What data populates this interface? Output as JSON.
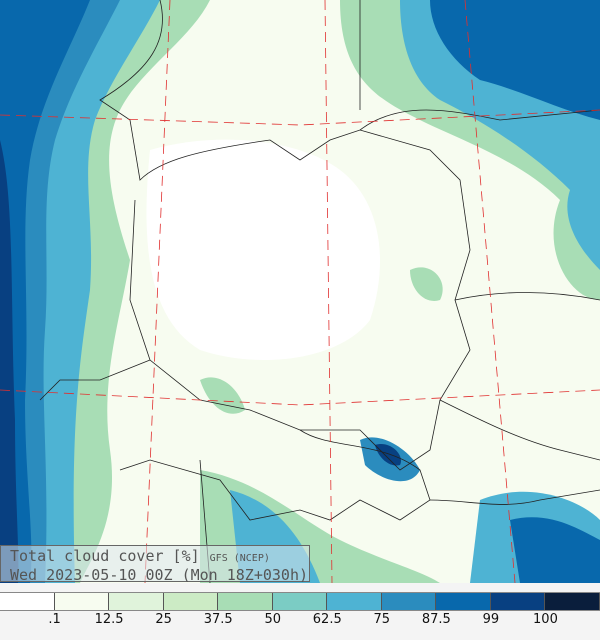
{
  "caption": {
    "title": "Total cloud cover  [%]",
    "source": "GFS (NCEP)",
    "valid": "Wed 2023-05-10 00Z (Mon 18Z+030h)"
  },
  "legend": {
    "colors": [
      "#ffffff",
      "#f7fcf0",
      "#e0f3db",
      "#ccebc5",
      "#a8ddb5",
      "#7bccc4",
      "#4eb3d3",
      "#2b8cbe",
      "#0868ac",
      "#084081",
      "#0a1e3c"
    ],
    "ticks": [
      ".1",
      "12.5",
      "25",
      "37.5",
      "50",
      "62.5",
      "75",
      "87.5",
      "99",
      "100"
    ]
  }
}
